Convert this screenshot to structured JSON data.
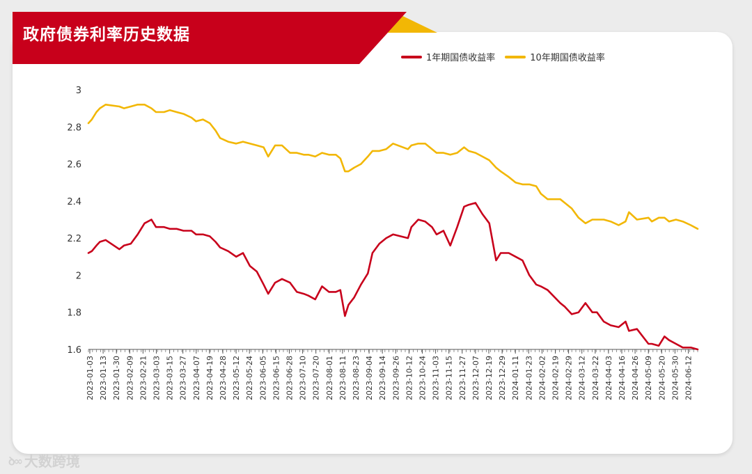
{
  "header": {
    "title": "政府债券利率历史数据"
  },
  "watermark": {
    "logo": "ꝺ∞",
    "text": "大数跨境"
  },
  "colors": {
    "banner": "#c8001b",
    "accent": "#f2b705",
    "series1": "#c8001b",
    "series2": "#f2b705"
  },
  "chart_data": {
    "type": "line",
    "title": "政府债券利率历史数据",
    "xlabel": "",
    "ylabel": "",
    "ylim": [
      1.6,
      3.0
    ],
    "yticks": [
      "3",
      "2.8",
      "2.6",
      "2.4",
      "2.2",
      "2",
      "1.8",
      "1.6"
    ],
    "ytick_values": [
      3.0,
      2.8,
      2.6,
      2.4,
      2.2,
      2.0,
      1.8,
      1.6
    ],
    "x_range": [
      "2023-01-03",
      "2024-06-18"
    ],
    "x_tick_labels": [
      "2023-01-03",
      "2023-01-13",
      "2023-01-30",
      "2023-02-09",
      "2023-02-21",
      "2023-03-03",
      "2023-03-15",
      "2023-03-27",
      "2023-04-07",
      "2023-04-19",
      "2023-04-28",
      "2023-05-12",
      "2023-05-24",
      "2023-06-05",
      "2023-06-15",
      "2023-06-28",
      "2023-07-10",
      "2023-07-20",
      "2023-08-01",
      "2023-08-11",
      "2023-08-23",
      "2023-09-04",
      "2023-09-14",
      "2023-09-26",
      "2023-10-12",
      "2023-10-24",
      "2023-11-03",
      "2023-11-15",
      "2023-11-27",
      "2023-12-07",
      "2023-12-19",
      "2023-12-29",
      "2024-01-11",
      "2024-01-23",
      "2024-02-02",
      "2024-02-19",
      "2024-02-29",
      "2024-03-12",
      "2024-03-22",
      "2024-04-03",
      "2024-04-16",
      "2024-04-26",
      "2024-05-09",
      "2024-05-20",
      "2024-05-30",
      "2024-06-12"
    ],
    "grid": false,
    "legend_position": "top-right",
    "series": [
      {
        "name": "1年期国债收益率",
        "color": "#c8001b",
        "x": [
          "2023-01-03",
          "2023-01-06",
          "2023-01-10",
          "2023-01-13",
          "2023-01-18",
          "2023-01-30",
          "2023-02-03",
          "2023-02-09",
          "2023-02-15",
          "2023-02-21",
          "2023-02-27",
          "2023-03-03",
          "2023-03-10",
          "2023-03-15",
          "2023-03-21",
          "2023-03-27",
          "2023-04-03",
          "2023-04-07",
          "2023-04-13",
          "2023-04-19",
          "2023-04-24",
          "2023-04-28",
          "2023-05-05",
          "2023-05-12",
          "2023-05-18",
          "2023-05-24",
          "2023-05-30",
          "2023-06-05",
          "2023-06-09",
          "2023-06-15",
          "2023-06-21",
          "2023-06-28",
          "2023-07-04",
          "2023-07-10",
          "2023-07-14",
          "2023-07-20",
          "2023-07-26",
          "2023-08-01",
          "2023-08-07",
          "2023-08-11",
          "2023-08-15",
          "2023-08-18",
          "2023-08-23",
          "2023-08-29",
          "2023-09-04",
          "2023-09-08",
          "2023-09-14",
          "2023-09-20",
          "2023-09-26",
          "2023-10-09",
          "2023-10-12",
          "2023-10-18",
          "2023-10-24",
          "2023-10-30",
          "2023-11-03",
          "2023-11-09",
          "2023-11-15",
          "2023-11-21",
          "2023-11-27",
          "2023-12-01",
          "2023-12-07",
          "2023-12-13",
          "2023-12-19",
          "2023-12-25",
          "2023-12-29",
          "2024-01-05",
          "2024-01-11",
          "2024-01-17",
          "2024-01-23",
          "2024-01-29",
          "2024-02-02",
          "2024-02-08",
          "2024-02-19",
          "2024-02-23",
          "2024-02-29",
          "2024-03-06",
          "2024-03-12",
          "2024-03-18",
          "2024-03-22",
          "2024-03-28",
          "2024-04-03",
          "2024-04-10",
          "2024-04-16",
          "2024-04-19",
          "2024-04-26",
          "2024-05-06",
          "2024-05-09",
          "2024-05-15",
          "2024-05-20",
          "2024-05-24",
          "2024-05-30",
          "2024-06-05",
          "2024-06-12",
          "2024-06-18"
        ],
        "values": [
          2.12,
          2.13,
          2.16,
          2.18,
          2.19,
          2.14,
          2.16,
          2.17,
          2.22,
          2.28,
          2.3,
          2.26,
          2.26,
          2.25,
          2.25,
          2.24,
          2.24,
          2.22,
          2.22,
          2.21,
          2.18,
          2.15,
          2.13,
          2.1,
          2.12,
          2.05,
          2.02,
          1.95,
          1.9,
          1.96,
          1.98,
          1.96,
          1.91,
          1.9,
          1.89,
          1.87,
          1.94,
          1.91,
          1.91,
          1.92,
          1.78,
          1.84,
          1.88,
          1.95,
          2.01,
          2.12,
          2.17,
          2.2,
          2.22,
          2.2,
          2.26,
          2.3,
          2.29,
          2.26,
          2.22,
          2.24,
          2.16,
          2.26,
          2.37,
          2.38,
          2.39,
          2.33,
          2.28,
          2.08,
          2.12,
          2.12,
          2.1,
          2.08,
          2.0,
          1.95,
          1.94,
          1.92,
          1.85,
          1.83,
          1.79,
          1.8,
          1.85,
          1.8,
          1.8,
          1.75,
          1.73,
          1.72,
          1.75,
          1.7,
          1.71,
          1.63,
          1.63,
          1.62,
          1.67,
          1.65,
          1.63,
          1.61,
          1.61,
          1.6
        ]
      },
      {
        "name": "10年期国债收益率",
        "color": "#f2b705",
        "x": [
          "2023-01-03",
          "2023-01-06",
          "2023-01-10",
          "2023-01-13",
          "2023-01-18",
          "2023-01-30",
          "2023-02-03",
          "2023-02-09",
          "2023-02-15",
          "2023-02-21",
          "2023-02-27",
          "2023-03-03",
          "2023-03-10",
          "2023-03-15",
          "2023-03-21",
          "2023-03-27",
          "2023-04-03",
          "2023-04-07",
          "2023-04-13",
          "2023-04-19",
          "2023-04-24",
          "2023-04-28",
          "2023-05-05",
          "2023-05-12",
          "2023-05-18",
          "2023-05-24",
          "2023-05-30",
          "2023-06-05",
          "2023-06-09",
          "2023-06-15",
          "2023-06-21",
          "2023-06-28",
          "2023-07-04",
          "2023-07-10",
          "2023-07-14",
          "2023-07-20",
          "2023-07-26",
          "2023-08-01",
          "2023-08-07",
          "2023-08-11",
          "2023-08-15",
          "2023-08-18",
          "2023-08-23",
          "2023-08-29",
          "2023-09-04",
          "2023-09-08",
          "2023-09-14",
          "2023-09-20",
          "2023-09-26",
          "2023-10-09",
          "2023-10-12",
          "2023-10-18",
          "2023-10-24",
          "2023-10-30",
          "2023-11-03",
          "2023-11-09",
          "2023-11-15",
          "2023-11-21",
          "2023-11-27",
          "2023-12-01",
          "2023-12-07",
          "2023-12-13",
          "2023-12-19",
          "2023-12-25",
          "2023-12-29",
          "2024-01-05",
          "2024-01-11",
          "2024-01-17",
          "2024-01-23",
          "2024-01-29",
          "2024-02-02",
          "2024-02-08",
          "2024-02-19",
          "2024-02-23",
          "2024-02-29",
          "2024-03-06",
          "2024-03-12",
          "2024-03-18",
          "2024-03-22",
          "2024-03-28",
          "2024-04-03",
          "2024-04-10",
          "2024-04-16",
          "2024-04-19",
          "2024-04-26",
          "2024-05-06",
          "2024-05-09",
          "2024-05-15",
          "2024-05-20",
          "2024-05-24",
          "2024-05-30",
          "2024-06-05",
          "2024-06-12",
          "2024-06-18"
        ],
        "values": [
          2.82,
          2.84,
          2.88,
          2.9,
          2.92,
          2.91,
          2.9,
          2.91,
          2.92,
          2.92,
          2.9,
          2.88,
          2.88,
          2.89,
          2.88,
          2.87,
          2.85,
          2.83,
          2.84,
          2.82,
          2.78,
          2.74,
          2.72,
          2.71,
          2.72,
          2.71,
          2.7,
          2.69,
          2.64,
          2.7,
          2.7,
          2.66,
          2.66,
          2.65,
          2.65,
          2.64,
          2.66,
          2.65,
          2.65,
          2.63,
          2.56,
          2.56,
          2.58,
          2.6,
          2.64,
          2.67,
          2.67,
          2.68,
          2.71,
          2.68,
          2.7,
          2.71,
          2.71,
          2.68,
          2.66,
          2.66,
          2.65,
          2.66,
          2.69,
          2.67,
          2.66,
          2.64,
          2.62,
          2.58,
          2.56,
          2.53,
          2.5,
          2.49,
          2.49,
          2.48,
          2.44,
          2.41,
          2.41,
          2.39,
          2.36,
          2.31,
          2.28,
          2.3,
          2.3,
          2.3,
          2.29,
          2.27,
          2.29,
          2.34,
          2.3,
          2.31,
          2.29,
          2.31,
          2.31,
          2.29,
          2.3,
          2.29,
          2.27,
          2.25
        ]
      }
    ]
  }
}
